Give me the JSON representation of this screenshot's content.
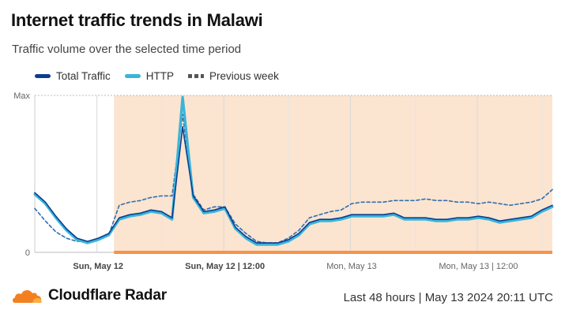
{
  "title": "Internet traffic trends in Malawi",
  "subtitle": "Traffic volume over the selected time period",
  "legend": [
    {
      "label": "Total Traffic",
      "color": "#0b3d91",
      "style": "solid"
    },
    {
      "label": "HTTP",
      "color": "#3ab5d9",
      "style": "solid"
    },
    {
      "label": "Previous week",
      "color": "#555555",
      "style": "dashed"
    }
  ],
  "footer": {
    "brand": "Cloudflare Radar",
    "info": "Last 48 hours | May 13 2024 20:11 UTC"
  },
  "colors": {
    "total": "#0b3d91",
    "http": "#3ab5d9",
    "previous": "#2f6fb0",
    "highlight": "#fbe4d0",
    "highlight_bar": "#f5934a",
    "logo": "#f38020"
  },
  "chart_data": {
    "type": "line",
    "title": "Internet traffic trends in Malawi",
    "y_tick_labels": [
      "Max",
      "0"
    ],
    "ylim": [
      0,
      100
    ],
    "x_tick_labels": [
      "Sun, May 12",
      "Sun, May 12 | 12:00",
      "Mon, May 13",
      "Mon, May 13 | 12:00"
    ],
    "x_ticks_hours": [
      0,
      12,
      24,
      36
    ],
    "x_range_hours": [
      -6,
      43
    ],
    "highlight_range_hours": [
      1.5,
      43
    ],
    "grid": true,
    "legend_position": "top-left",
    "x_hours": [
      -6,
      -5,
      -4,
      -3,
      -2,
      -1,
      0,
      1,
      2,
      3,
      4,
      5,
      6,
      7,
      8,
      9,
      10,
      11,
      12,
      13,
      14,
      15,
      16,
      17,
      18,
      19,
      20,
      21,
      22,
      23,
      24,
      25,
      26,
      27,
      28,
      29,
      30,
      31,
      32,
      33,
      34,
      35,
      36,
      37,
      38,
      39,
      40,
      41,
      42,
      43
    ],
    "series": [
      {
        "name": "Total Traffic",
        "values": [
          38,
          32,
          23,
          15,
          9,
          7,
          9,
          12,
          22,
          24,
          25,
          27,
          26,
          22,
          80,
          36,
          26,
          27,
          29,
          16,
          10,
          6,
          6,
          6,
          8,
          12,
          19,
          21,
          21,
          22,
          24,
          24,
          24,
          24,
          25,
          22,
          22,
          22,
          21,
          21,
          22,
          22,
          23,
          22,
          20,
          21,
          22,
          23,
          27,
          30
        ]
      },
      {
        "name": "HTTP",
        "values": [
          37,
          31,
          22,
          14,
          8,
          6,
          8,
          11,
          21,
          23,
          24,
          26,
          25,
          21,
          99,
          35,
          25,
          26,
          28,
          15,
          9,
          5,
          5,
          5,
          7,
          11,
          18,
          20,
          20,
          21,
          23,
          23,
          23,
          23,
          24,
          21,
          21,
          21,
          20,
          20,
          21,
          21,
          22,
          21,
          19,
          20,
          21,
          22,
          26,
          29
        ]
      },
      {
        "name": "Previous week",
        "values": [
          28,
          20,
          13,
          9,
          7,
          7,
          8,
          11,
          30,
          32,
          33,
          35,
          36,
          36,
          88,
          37,
          27,
          29,
          29,
          18,
          12,
          7,
          6,
          6,
          9,
          14,
          22,
          24,
          26,
          27,
          31,
          32,
          32,
          32,
          33,
          33,
          33,
          34,
          33,
          33,
          32,
          32,
          31,
          32,
          31,
          30,
          31,
          32,
          34,
          40
        ]
      }
    ]
  }
}
